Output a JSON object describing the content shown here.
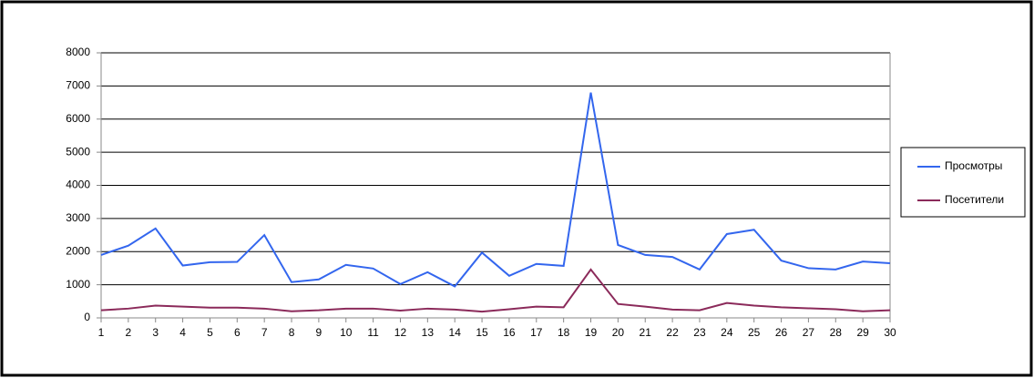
{
  "chart_data": {
    "type": "line",
    "x": [
      1,
      2,
      3,
      4,
      5,
      6,
      7,
      8,
      9,
      10,
      11,
      12,
      13,
      14,
      15,
      16,
      17,
      18,
      19,
      20,
      21,
      22,
      23,
      24,
      25,
      26,
      27,
      28,
      29,
      30
    ],
    "xlim": [
      1,
      30
    ],
    "series": [
      {
        "name": "Просмотры",
        "color": "#3366ee",
        "values": [
          1900,
          2180,
          2700,
          1580,
          1680,
          1690,
          2500,
          1080,
          1160,
          1600,
          1490,
          1020,
          1380,
          950,
          1970,
          1270,
          1630,
          1570,
          6800,
          2200,
          1900,
          1840,
          1460,
          2530,
          2660,
          1730,
          1500,
          1460,
          1700,
          1650
        ]
      },
      {
        "name": "Посетители",
        "color": "#8b2a5a",
        "values": [
          230,
          280,
          370,
          340,
          310,
          310,
          280,
          200,
          230,
          280,
          280,
          220,
          280,
          250,
          190,
          260,
          340,
          320,
          1460,
          420,
          340,
          250,
          230,
          450,
          370,
          320,
          290,
          260,
          200,
          230
        ]
      }
    ],
    "ylim": [
      0,
      8000
    ],
    "yticks": [
      0,
      1000,
      2000,
      3000,
      4000,
      5000,
      6000,
      7000,
      8000
    ],
    "grid": true,
    "legend": "right"
  }
}
